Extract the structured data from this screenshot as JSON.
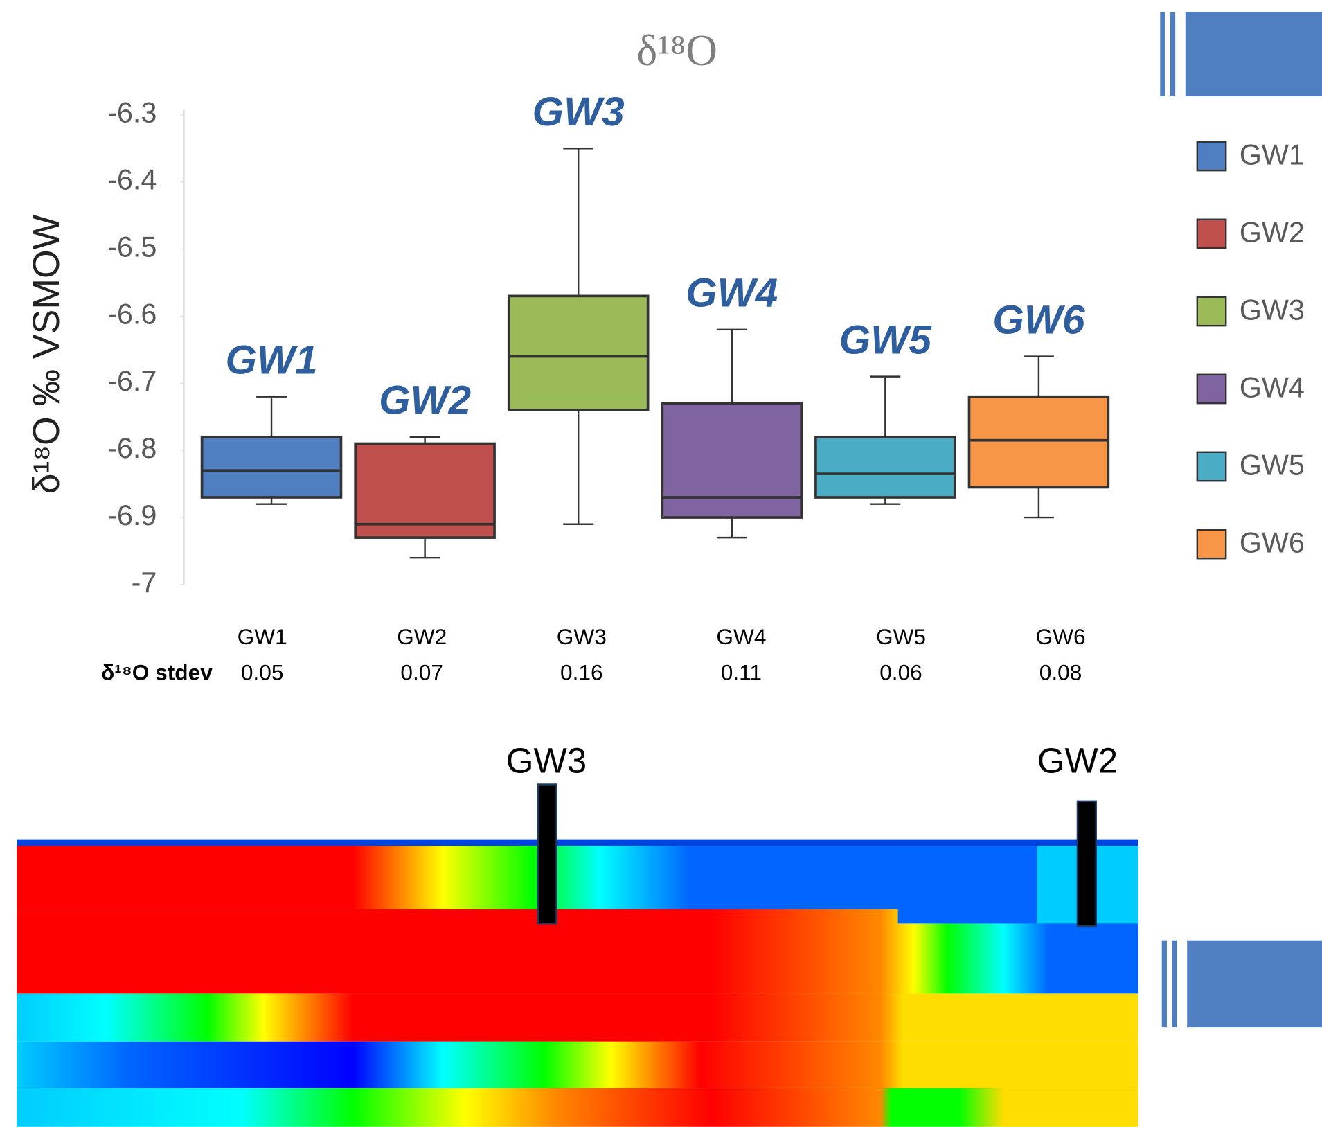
{
  "chart_data": {
    "type": "box",
    "title": "δ¹⁸O",
    "y_label": "δ¹⁸O ‰ VSMOW",
    "categories": [
      "GW1",
      "GW2",
      "GW3",
      "GW4",
      "GW5",
      "GW6"
    ],
    "series": [
      {
        "name": "GW1",
        "color": "#4f7fc0",
        "min": -6.88,
        "q1": -6.87,
        "median": -6.83,
        "q3": -6.78,
        "max": -6.72
      },
      {
        "name": "GW2",
        "color": "#c0504d",
        "min": -6.96,
        "q1": -6.93,
        "median": -6.91,
        "q3": -6.79,
        "max": -6.78
      },
      {
        "name": "GW3",
        "color": "#9bbb59",
        "min": -6.91,
        "q1": -6.74,
        "median": -6.66,
        "q3": -6.57,
        "max": -6.35
      },
      {
        "name": "GW4",
        "color": "#8064a2",
        "min": -6.93,
        "q1": -6.9,
        "median": -6.87,
        "q3": -6.73,
        "max": -6.62
      },
      {
        "name": "GW5",
        "color": "#4bacc6",
        "min": -6.88,
        "q1": -6.87,
        "median": -6.835,
        "q3": -6.78,
        "max": -6.69
      },
      {
        "name": "GW6",
        "color": "#f79646",
        "min": -6.9,
        "q1": -6.855,
        "median": -6.785,
        "q3": -6.72,
        "max": -6.66
      }
    ],
    "annotations": [
      "GW1",
      "GW2",
      "GW3",
      "GW4",
      "GW5",
      "GW6"
    ],
    "ylim": [
      -7,
      -6.3
    ],
    "yticks": [
      -6.3,
      -6.4,
      -6.5,
      -6.6,
      -6.7,
      -6.8,
      -6.9,
      -7
    ],
    "legend_position": "right",
    "table": {
      "row_label": "δ¹⁸O stdev",
      "values": [
        0.05,
        0.07,
        0.16,
        0.11,
        0.06,
        0.08
      ]
    }
  },
  "profile": {
    "labels": [
      "GW3",
      "GW2"
    ]
  }
}
